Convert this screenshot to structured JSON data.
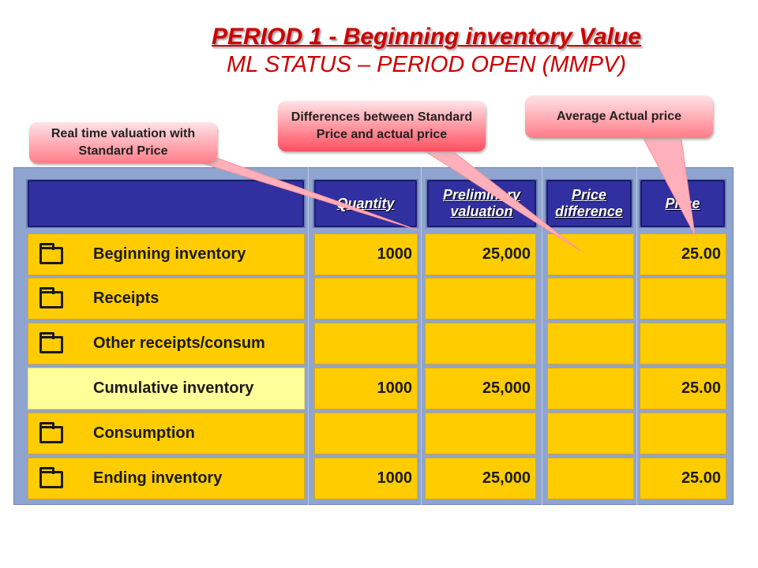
{
  "title": {
    "line1": "PERIOD 1 - Beginning inventory Value",
    "line2": "ML STATUS – PERIOD OPEN (MMPV)"
  },
  "callouts": {
    "standard": "Real time valuation with Standard Price",
    "differences": "Differences between Standard Price and actual price",
    "average": "Average Actual price"
  },
  "headers": {
    "quantity": "Quantity",
    "preliminary": "Preliminary valuation",
    "price_difference": "Price difference",
    "price": "Price"
  },
  "rows": [
    {
      "label": "Beginning inventory",
      "quantity": "1000",
      "valuation": "25,000",
      "price_difference": "",
      "price": "25.00",
      "icon": "folder-icon"
    },
    {
      "label": "Receipts",
      "quantity": "",
      "valuation": "",
      "price_difference": "",
      "price": "",
      "icon": "folder-icon"
    },
    {
      "label": "Other receipts/consum",
      "quantity": "",
      "valuation": "",
      "price_difference": "",
      "price": "",
      "icon": "folder-icon"
    },
    {
      "label": "Cumulative inventory",
      "quantity": "1000",
      "valuation": "25,000",
      "price_difference": "",
      "price": "25.00",
      "icon": ""
    },
    {
      "label": "Consumption",
      "quantity": "",
      "valuation": "",
      "price_difference": "",
      "price": "",
      "icon": "folder-icon"
    },
    {
      "label": "Ending inventory",
      "quantity": "1000",
      "valuation": "25,000",
      "price_difference": "",
      "price": "25.00",
      "icon": "folder-icon"
    }
  ],
  "colors": {
    "title": "#cc0000",
    "header_bg": "#3030a0",
    "cell_bg": "#ffcc00",
    "cumulative_bg": "#ffff99",
    "panel_bg": "#8fa5cf",
    "callout_bg": "#ff7c88"
  }
}
